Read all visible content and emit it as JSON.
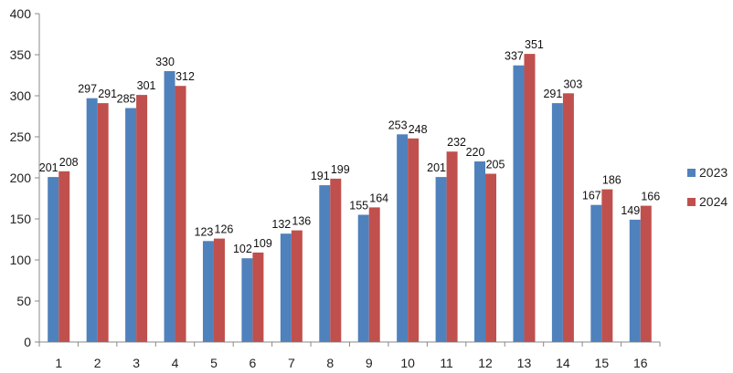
{
  "chart_data": {
    "type": "bar",
    "categories": [
      "1",
      "2",
      "3",
      "4",
      "5",
      "6",
      "7",
      "8",
      "9",
      "10",
      "11",
      "12",
      "13",
      "14",
      "15",
      "16"
    ],
    "series": [
      {
        "name": "2023",
        "color": "#4F81BD",
        "values": [
          201,
          297,
          285,
          330,
          123,
          102,
          132,
          191,
          155,
          253,
          201,
          220,
          337,
          291,
          167,
          149
        ]
      },
      {
        "name": "2024",
        "color": "#C0504D",
        "values": [
          208,
          291,
          301,
          312,
          126,
          109,
          136,
          199,
          164,
          248,
          232,
          205,
          351,
          303,
          186,
          166
        ]
      }
    ],
    "title": "",
    "xlabel": "",
    "ylabel": "",
    "ylim": [
      0,
      400
    ],
    "y_ticks": [
      0,
      50,
      100,
      150,
      200,
      250,
      300,
      350,
      400
    ],
    "grid": false,
    "data_labels": true,
    "legend_position": "right"
  }
}
